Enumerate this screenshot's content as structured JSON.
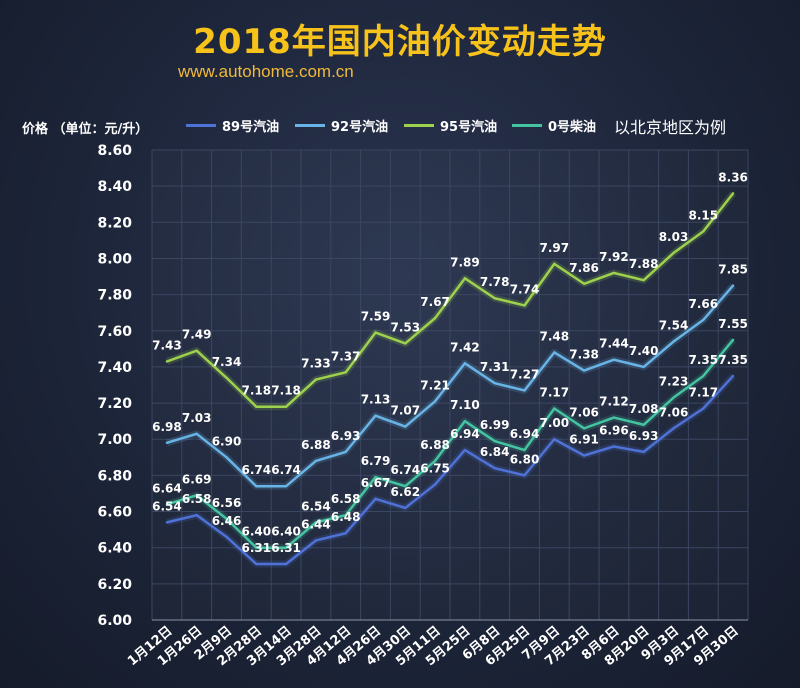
{
  "title": "2018年国内油价变动走势",
  "subtitle": "www.autohome.com.cn",
  "note": "以北京地区为例",
  "colors": {
    "series_89": "#4f72d8",
    "series_92": "#68b4e6",
    "series_95": "#9ed24e",
    "series_0": "#45c4a2",
    "title": "#f7c21a"
  },
  "chart_data": {
    "type": "line",
    "title": "2018年国内油价变动走势",
    "ylabel": "价格 （单位：元/升）",
    "xlabel": "",
    "ylim": [
      6.0,
      8.6
    ],
    "yticks": [
      "6.00",
      "6.20",
      "6.40",
      "6.60",
      "6.80",
      "7.00",
      "7.20",
      "7.40",
      "7.60",
      "7.80",
      "8.00",
      "8.20",
      "8.40",
      "8.60"
    ],
    "grid": true,
    "legend_position": "top",
    "categories": [
      "1月12日",
      "1月26日",
      "2月9日",
      "2月28日",
      "3月14日",
      "3月28日",
      "4月12日",
      "4月26日",
      "4月30日",
      "5月11日",
      "5月25日",
      "6月8日",
      "6月25日",
      "7月9日",
      "7月23日",
      "8月6日",
      "8月20日",
      "9月3日",
      "9月17日",
      "9月30日"
    ],
    "series": [
      {
        "name": "89号汽油",
        "color": "#4f72d8",
        "values": [
          6.54,
          6.58,
          6.46,
          6.31,
          6.31,
          6.44,
          6.48,
          6.67,
          6.62,
          6.75,
          6.94,
          6.84,
          6.8,
          7.0,
          6.91,
          6.96,
          6.93,
          7.06,
          7.17,
          7.35
        ],
        "labels": [
          "6.54",
          "6.58",
          "6.46",
          "6.31",
          "6.31",
          "6.44",
          "6.48",
          "6.67",
          "6.62",
          "6.75",
          "6.94",
          "6.84",
          "6.80",
          "7.00",
          "6.91",
          "6.96",
          "6.93",
          "7.06",
          "7.17",
          "7.35"
        ]
      },
      {
        "name": "92号汽油",
        "color": "#68b4e6",
        "values": [
          6.98,
          7.03,
          6.9,
          6.74,
          6.74,
          6.88,
          6.93,
          7.13,
          7.07,
          7.21,
          7.42,
          7.31,
          7.27,
          7.48,
          7.38,
          7.44,
          7.4,
          7.54,
          7.66,
          7.85
        ],
        "labels": [
          "6.98",
          "7.03",
          "6.90",
          "6.74",
          "6.74",
          "6.88",
          "6.93",
          "7.13",
          "7.07",
          "7.21",
          "7.42",
          "7.31",
          "7.27",
          "7.48",
          "7.38",
          "7.44",
          "7.40",
          "7.54",
          "7.66",
          "7.85"
        ]
      },
      {
        "name": "95号汽油",
        "color": "#9ed24e",
        "values": [
          7.43,
          7.49,
          7.34,
          7.18,
          7.18,
          7.33,
          7.37,
          7.59,
          7.53,
          7.67,
          7.89,
          7.78,
          7.74,
          7.97,
          7.86,
          7.92,
          7.88,
          8.03,
          8.15,
          8.36
        ],
        "labels": [
          "7.43",
          "7.49",
          "7.34",
          "7.18",
          "7.18",
          "7.33",
          "7.37",
          "7.59",
          "7.53",
          "7.67",
          "7.89",
          "7.78",
          "7.74",
          "7.97",
          "7.86",
          "7.92",
          "7.88",
          "8.03",
          "8.15",
          "8.36"
        ]
      },
      {
        "name": "0号柴油",
        "color": "#45c4a2",
        "values": [
          6.64,
          6.69,
          6.56,
          6.4,
          6.4,
          6.54,
          6.58,
          6.79,
          6.74,
          6.88,
          7.1,
          6.99,
          6.94,
          7.17,
          7.06,
          7.12,
          7.08,
          7.23,
          7.35,
          7.55
        ],
        "labels": [
          "6.64",
          "6.69",
          "6.56",
          "6.40",
          "6.40",
          "6.54",
          "6.58",
          "6.79",
          "6.74",
          "6.88",
          "7.10",
          "6.99",
          "6.94",
          "7.17",
          "7.06",
          "7.12",
          "7.08",
          "7.23",
          "7.35",
          "7.55"
        ]
      }
    ]
  }
}
